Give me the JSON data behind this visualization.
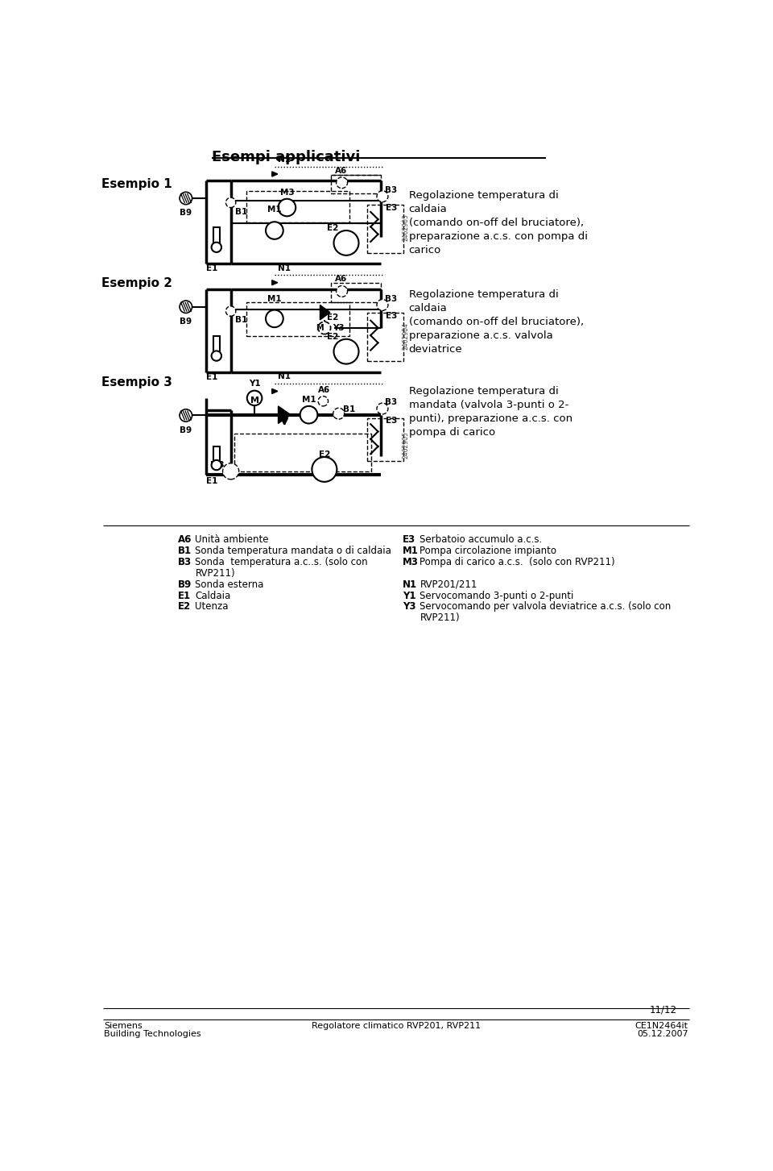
{
  "title": "Esempi applicativi",
  "background_color": "#ffffff",
  "text_color": "#000000",
  "esempio1_label": "Esempio 1",
  "esempio2_label": "Esempio 2",
  "esempio3_label": "Esempio 3",
  "esempio1_desc": "Regolazione temperatura di\ncaldaia\n(comando on-off del bruciatore),\npreparazione a.c.s. con pompa di\ncarico",
  "esempio2_desc": "Regolazione temperatura di\ncaldaia\n(comando on-off del bruciatore),\npreparazione a.c.s. valvola\ndeviatrice",
  "esempio3_desc": "Regolazione temperatura di\nmandata (valvola 3-punti o 2-\npunti), preparazione a.c.s. con\npompa di carico",
  "footer_left1": "Siemens",
  "footer_left2": "Building Technologies",
  "footer_center": "Regolatore climatico RVP201, RVP211",
  "footer_right1": "CE1N2464it",
  "footer_right2": "05.12.2007",
  "footer_page": "11/12"
}
